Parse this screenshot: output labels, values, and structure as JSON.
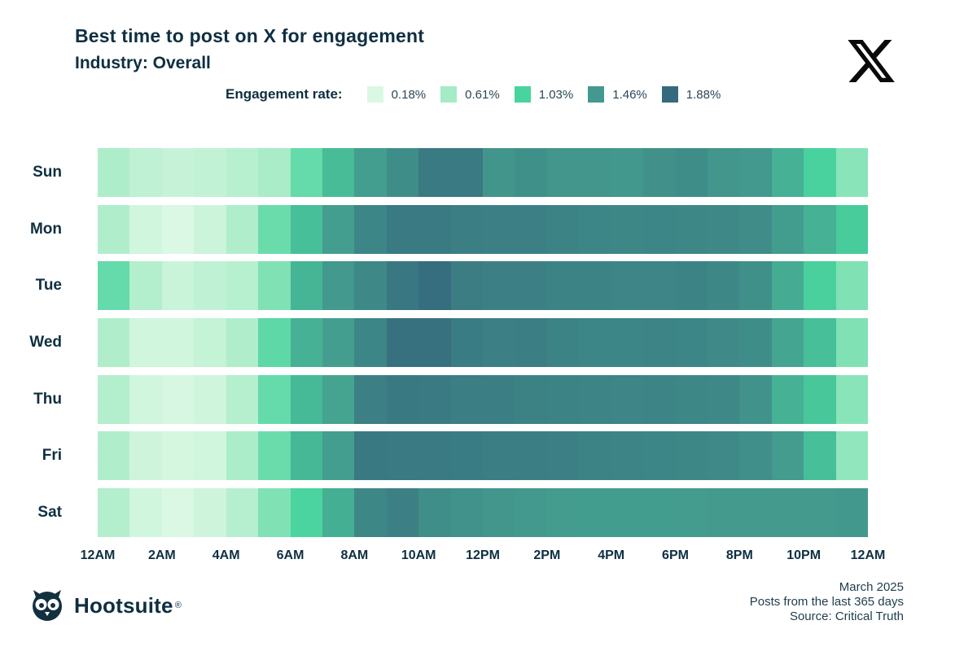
{
  "header": {
    "title": "Best time to post on X for engagement",
    "subtitle": "Industry: Overall"
  },
  "colors": {
    "ink": "#0f2f40",
    "footer_text": "#1e3d4d",
    "x_logo": "#0a0a0a"
  },
  "chart_data": {
    "type": "heatmap",
    "title": "Best time to post on X for engagement",
    "subtitle": "Industry: Overall",
    "value_unit": "% engagement rate",
    "legend": {
      "label": "Engagement rate:",
      "position": "top",
      "levels": [
        {
          "label": "0.18%",
          "value": 0.18,
          "color": "#daf8e3"
        },
        {
          "label": "0.61%",
          "value": 0.61,
          "color": "#a5ebc5"
        },
        {
          "label": "1.03%",
          "value": 1.03,
          "color": "#49d39e"
        },
        {
          "label": "1.46%",
          "value": 1.46,
          "color": "#43998d"
        },
        {
          "label": "1.88%",
          "value": 1.88,
          "color": "#356a7d"
        }
      ]
    },
    "x_tick_labels": [
      "12AM",
      "2AM",
      "4AM",
      "6AM",
      "8AM",
      "10AM",
      "12PM",
      "2PM",
      "4PM",
      "6PM",
      "8PM",
      "10PM",
      "12AM"
    ],
    "hours_per_row": 24,
    "categories": [
      "Sun",
      "Mon",
      "Tue",
      "Wed",
      "Thu",
      "Fri",
      "Sat"
    ],
    "series": [
      {
        "name": "Sun",
        "values": [
          0.54,
          0.4,
          0.34,
          0.38,
          0.46,
          0.58,
          0.9,
          1.2,
          1.42,
          1.57,
          1.74,
          1.74,
          1.5,
          1.54,
          1.49,
          1.49,
          1.47,
          1.53,
          1.57,
          1.49,
          1.46,
          1.28,
          1.04,
          0.74
        ]
      },
      {
        "name": "Mon",
        "values": [
          0.52,
          0.26,
          0.18,
          0.3,
          0.52,
          0.88,
          1.18,
          1.42,
          1.63,
          1.74,
          1.74,
          1.7,
          1.68,
          1.68,
          1.66,
          1.63,
          1.62,
          1.63,
          1.62,
          1.6,
          1.58,
          1.43,
          1.28,
          1.08
        ]
      },
      {
        "name": "Tue",
        "values": [
          0.9,
          0.5,
          0.32,
          0.4,
          0.46,
          0.78,
          1.25,
          1.46,
          1.6,
          1.76,
          1.84,
          1.71,
          1.68,
          1.68,
          1.66,
          1.66,
          1.64,
          1.64,
          1.66,
          1.62,
          1.54,
          1.32,
          1.05,
          0.78
        ]
      },
      {
        "name": "Wed",
        "values": [
          0.52,
          0.26,
          0.26,
          0.36,
          0.52,
          0.94,
          1.28,
          1.42,
          1.63,
          1.82,
          1.82,
          1.72,
          1.68,
          1.7,
          1.66,
          1.63,
          1.63,
          1.65,
          1.63,
          1.59,
          1.57,
          1.37,
          1.18,
          0.78
        ]
      },
      {
        "name": "Thu",
        "values": [
          0.5,
          0.25,
          0.2,
          0.27,
          0.48,
          0.9,
          1.22,
          1.38,
          1.68,
          1.75,
          1.73,
          1.7,
          1.69,
          1.67,
          1.66,
          1.65,
          1.64,
          1.65,
          1.62,
          1.6,
          1.52,
          1.28,
          1.12,
          0.74
        ]
      },
      {
        "name": "Fri",
        "values": [
          0.52,
          0.28,
          0.22,
          0.26,
          0.55,
          0.88,
          1.23,
          1.42,
          1.75,
          1.74,
          1.73,
          1.72,
          1.7,
          1.69,
          1.68,
          1.66,
          1.65,
          1.63,
          1.62,
          1.59,
          1.55,
          1.44,
          1.18,
          0.7
        ]
      },
      {
        "name": "Sat",
        "values": [
          0.5,
          0.25,
          0.18,
          0.28,
          0.47,
          0.78,
          1.02,
          1.3,
          1.62,
          1.68,
          1.56,
          1.52,
          1.49,
          1.46,
          1.44,
          1.43,
          1.43,
          1.43,
          1.44,
          1.45,
          1.45,
          1.45,
          1.45,
          1.47
        ]
      }
    ],
    "grid": false
  },
  "footer": {
    "brand": "Hootsuite",
    "registered": "®",
    "notes": [
      "March 2025",
      "Posts from the last 365 days",
      "Source: Critical Truth"
    ]
  }
}
